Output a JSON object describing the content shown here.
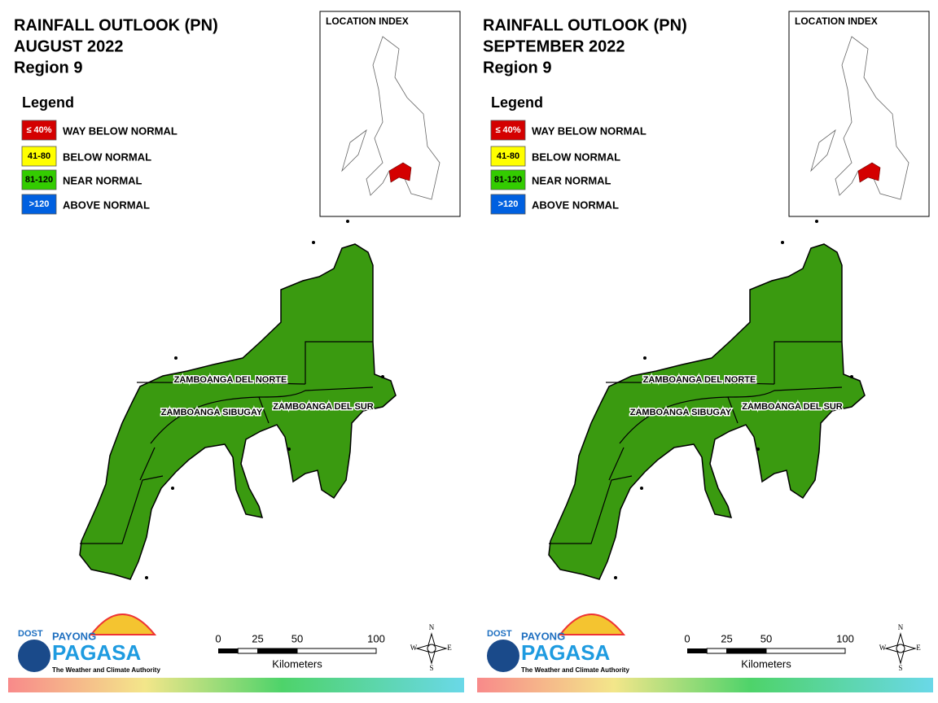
{
  "panels": [
    {
      "title": [
        "RAINFALL OUTLOOK (PN)",
        "AUGUST 2022",
        "Region 9"
      ],
      "legend": {
        "title": "Legend",
        "items": [
          {
            "range": "≤ 40%",
            "label": "WAY BELOW NORMAL",
            "color": "#d40000"
          },
          {
            "range": "41-80",
            "label": "BELOW NORMAL",
            "color": "#ffff00"
          },
          {
            "range": "81-120",
            "label": "NEAR NORMAL",
            "color": "#33cc00"
          },
          {
            "range": ">120",
            "label": "ABOVE NORMAL",
            "color": "#0060e0"
          }
        ]
      },
      "location_index": "LOCATION INDEX",
      "provinces": [
        "ZAMBOANGA DEL NORTE",
        "ZAMBOANGA SIBUGAY",
        "ZAMBOANGA DEL SUR"
      ],
      "map_color": "#3a9a10",
      "scale": {
        "ticks": [
          0,
          25,
          50,
          100
        ],
        "unit": "Kilometers"
      },
      "compass": [
        "N",
        "E",
        "S",
        "W"
      ],
      "logo": {
        "agency": "DOST",
        "name1": "PAYONG",
        "name2": "PAGASA",
        "tagline": "The Weather and Climate Authority"
      }
    },
    {
      "title": [
        "RAINFALL OUTLOOK (PN)",
        "SEPTEMBER 2022",
        "Region 9"
      ],
      "legend": {
        "title": "Legend",
        "items": [
          {
            "range": "≤ 40%",
            "label": "WAY BELOW NORMAL",
            "color": "#d40000"
          },
          {
            "range": "41-80",
            "label": "BELOW NORMAL",
            "color": "#ffff00"
          },
          {
            "range": "81-120",
            "label": "NEAR NORMAL",
            "color": "#33cc00"
          },
          {
            "range": ">120",
            "label": "ABOVE NORMAL",
            "color": "#0060e0"
          }
        ]
      },
      "location_index": "LOCATION INDEX",
      "provinces": [
        "ZAMBOANGA DEL NORTE",
        "ZAMBOANGA SIBUGAY",
        "ZAMBOANGA DEL SUR"
      ],
      "map_color": "#3a9a10",
      "scale": {
        "ticks": [
          0,
          25,
          50,
          100
        ],
        "unit": "Kilometers"
      },
      "compass": [
        "N",
        "E",
        "S",
        "W"
      ],
      "logo": {
        "agency": "DOST",
        "name1": "PAYONG",
        "name2": "PAGASA",
        "tagline": "The Weather and Climate Authority"
      }
    }
  ]
}
